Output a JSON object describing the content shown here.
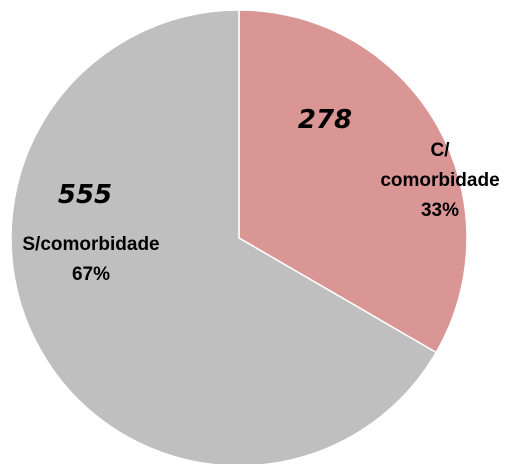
{
  "chart_data": {
    "type": "pie",
    "categories": [
      "C/ comorbidade",
      "S/comorbidade"
    ],
    "values": [
      278,
      555
    ],
    "percentages": [
      33,
      67
    ],
    "percentage_labels": [
      "33%",
      "67%"
    ],
    "colors": [
      "#da9694",
      "#bfbfbf"
    ]
  }
}
